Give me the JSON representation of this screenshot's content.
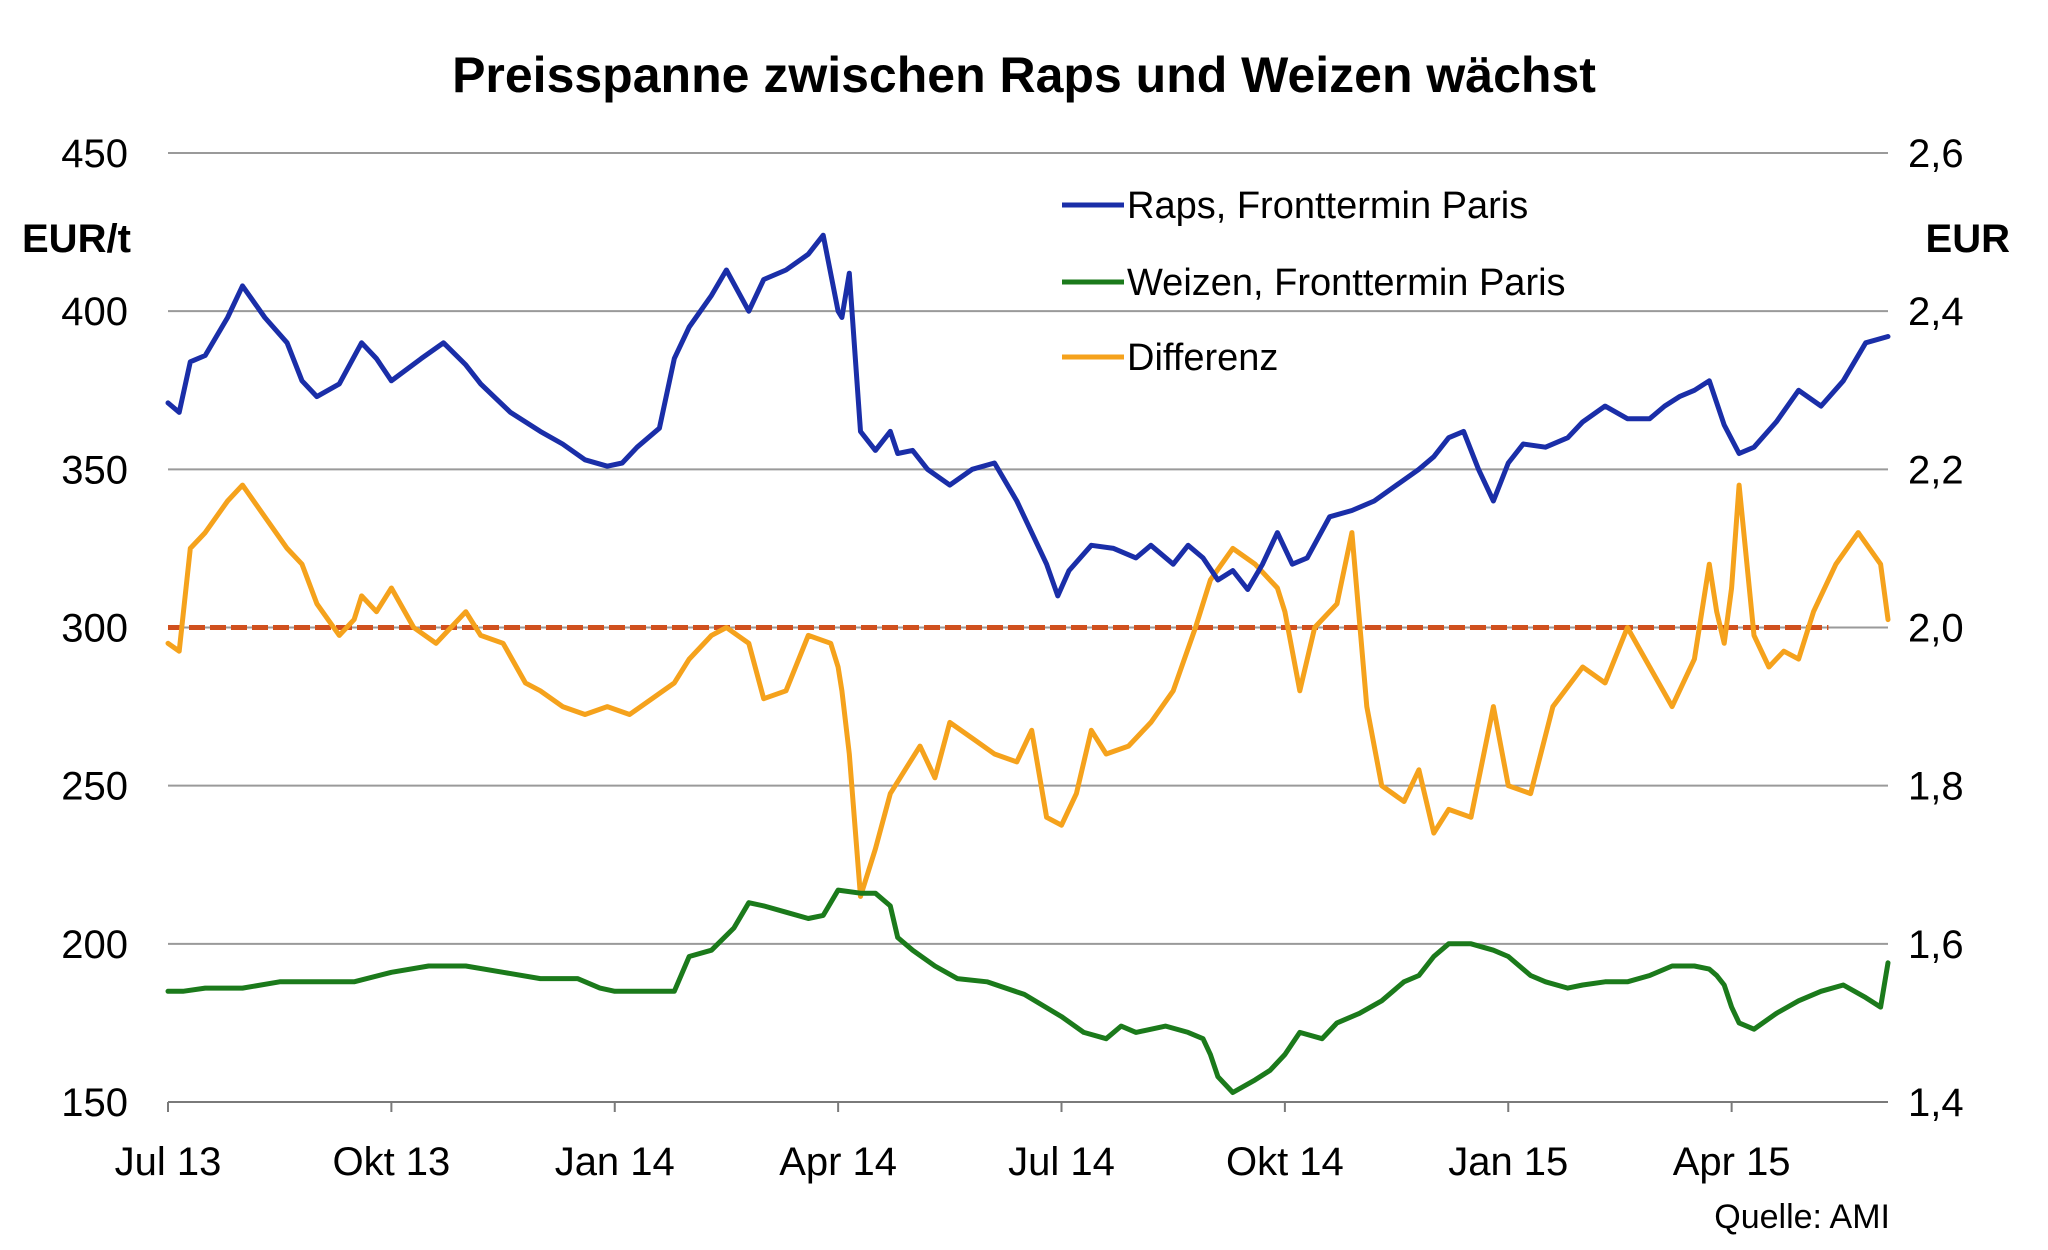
{
  "chart_data": {
    "type": "line",
    "title": "Preisspanne zwischen Raps und Weizen wächst",
    "ylabel": "EUR/t",
    "y2label": "EUR",
    "source": "Quelle: AMI",
    "ylim": [
      150,
      450
    ],
    "y2lim": [
      1.4,
      2.6
    ],
    "xlim": [
      0,
      23.1
    ],
    "yticks": [
      450,
      400,
      350,
      300,
      250,
      200,
      150
    ],
    "y2ticks": [
      "2,6",
      "2,4",
      "2,2",
      "2,0",
      "1,8",
      "1,6",
      "1,4"
    ],
    "x_tick_labels": [
      "Jul 13",
      "Okt 13",
      "Jan 14",
      "Apr 14",
      "Jul 14",
      "Okt 14",
      "Jan 15",
      "Apr 15"
    ],
    "x_tick_positions": [
      0,
      3,
      6,
      9,
      12,
      15,
      18,
      21
    ],
    "reference_line": {
      "axis": "right",
      "value": 2.0,
      "color": "#d0501e"
    },
    "series": [
      {
        "name": "Raps, Fronttermin Paris",
        "axis": "left",
        "color": "#1a2ea8",
        "x": [
          0,
          0.15,
          0.3,
          0.5,
          0.8,
          1.0,
          1.3,
          1.6,
          1.8,
          2.0,
          2.3,
          2.6,
          2.8,
          3.0,
          3.4,
          3.7,
          4.0,
          4.2,
          4.6,
          5.0,
          5.3,
          5.6,
          5.9,
          6.1,
          6.3,
          6.6,
          6.8,
          7.0,
          7.3,
          7.5,
          7.8,
          8.0,
          8.3,
          8.6,
          8.8,
          9.0,
          9.05,
          9.15,
          9.3,
          9.5,
          9.7,
          9.8,
          10.0,
          10.2,
          10.5,
          10.8,
          11.1,
          11.4,
          11.6,
          11.8,
          11.95,
          12.1,
          12.4,
          12.7,
          13.0,
          13.2,
          13.5,
          13.7,
          13.9,
          14.1,
          14.3,
          14.5,
          14.7,
          14.9,
          15.1,
          15.3,
          15.6,
          15.9,
          16.2,
          16.5,
          16.8,
          17.0,
          17.2,
          17.4,
          17.6,
          17.8,
          18.0,
          18.2,
          18.5,
          18.8,
          19.0,
          19.3,
          19.6,
          19.9,
          20.1,
          20.3,
          20.5,
          20.7,
          20.9,
          21.1,
          21.3,
          21.6,
          21.9,
          22.2,
          22.5,
          22.8,
          23.1
        ],
        "values": [
          371,
          368,
          384,
          386,
          398,
          408,
          398,
          390,
          378,
          373,
          377,
          390,
          385,
          378,
          385,
          390,
          383,
          377,
          368,
          362,
          358,
          353,
          351,
          352,
          357,
          363,
          385,
          395,
          405,
          413,
          400,
          410,
          413,
          418,
          424,
          400,
          398,
          412,
          362,
          356,
          362,
          355,
          356,
          350,
          345,
          350,
          352,
          340,
          330,
          320,
          310,
          318,
          326,
          325,
          322,
          326,
          320,
          326,
          322,
          315,
          318,
          312,
          320,
          330,
          320,
          322,
          335,
          337,
          340,
          345,
          350,
          354,
          360,
          362,
          350,
          340,
          352,
          358,
          357,
          360,
          365,
          370,
          366,
          366,
          370,
          373,
          375,
          378,
          364,
          355,
          357,
          365,
          375,
          370,
          378,
          390,
          392
        ]
      },
      {
        "name": "Weizen, Fronttermin Paris",
        "axis": "left",
        "color": "#1b7a1b",
        "x": [
          0,
          0.2,
          0.5,
          1.0,
          1.5,
          2.0,
          2.5,
          3.0,
          3.5,
          4.0,
          4.5,
          5.0,
          5.5,
          5.8,
          6.0,
          6.5,
          6.8,
          7.0,
          7.3,
          7.6,
          7.8,
          8.0,
          8.3,
          8.6,
          8.8,
          9.0,
          9.3,
          9.5,
          9.7,
          9.8,
          10.0,
          10.3,
          10.6,
          11.0,
          11.5,
          12.0,
          12.3,
          12.6,
          12.8,
          13.0,
          13.4,
          13.7,
          13.9,
          14.0,
          14.1,
          14.3,
          14.6,
          14.8,
          15.0,
          15.2,
          15.5,
          15.7,
          16.0,
          16.3,
          16.6,
          16.8,
          17.0,
          17.2,
          17.5,
          17.8,
          18.0,
          18.3,
          18.5,
          18.8,
          19.0,
          19.3,
          19.6,
          19.9,
          20.2,
          20.5,
          20.7,
          20.8,
          20.9,
          21.0,
          21.1,
          21.3,
          21.6,
          21.9,
          22.2,
          22.5,
          22.8,
          23.0,
          23.1
        ],
        "values": [
          185,
          185,
          186,
          186,
          188,
          188,
          188,
          191,
          193,
          193,
          191,
          189,
          189,
          186,
          185,
          185,
          185,
          196,
          198,
          205,
          213,
          212,
          210,
          208,
          209,
          217,
          216,
          216,
          212,
          202,
          198,
          193,
          189,
          188,
          184,
          177,
          172,
          170,
          174,
          172,
          174,
          172,
          170,
          165,
          158,
          153,
          157,
          160,
          165,
          172,
          170,
          175,
          178,
          182,
          188,
          190,
          196,
          200,
          200,
          198,
          196,
          190,
          188,
          186,
          187,
          188,
          188,
          190,
          193,
          193,
          192,
          190,
          187,
          180,
          175,
          173,
          178,
          182,
          185,
          187,
          183,
          180,
          194
        ]
      },
      {
        "name": "Differenz",
        "axis": "left",
        "color": "#f5a21c",
        "x": [
          0,
          0.15,
          0.3,
          0.5,
          0.8,
          1.0,
          1.3,
          1.6,
          1.8,
          2.0,
          2.3,
          2.5,
          2.6,
          2.8,
          3.0,
          3.3,
          3.6,
          4.0,
          4.2,
          4.5,
          4.8,
          5.0,
          5.3,
          5.6,
          5.9,
          6.2,
          6.5,
          6.8,
          7.0,
          7.3,
          7.5,
          7.8,
          8.0,
          8.3,
          8.6,
          8.9,
          9.0,
          9.05,
          9.15,
          9.3,
          9.5,
          9.7,
          9.9,
          10.1,
          10.3,
          10.5,
          10.8,
          11.1,
          11.4,
          11.6,
          11.8,
          12.0,
          12.2,
          12.4,
          12.6,
          12.9,
          13.2,
          13.5,
          13.8,
          14.0,
          14.3,
          14.6,
          14.9,
          15.0,
          15.2,
          15.4,
          15.7,
          15.9,
          16.1,
          16.3,
          16.6,
          16.8,
          17.0,
          17.2,
          17.5,
          17.8,
          18.0,
          18.3,
          18.6,
          19.0,
          19.3,
          19.6,
          19.9,
          20.2,
          20.5,
          20.7,
          20.8,
          20.9,
          21.0,
          21.1,
          21.3,
          21.5,
          21.7,
          21.9,
          22.1,
          22.4,
          22.7,
          23.0,
          23.1
        ],
        "values": [
          1.98,
          1.97,
          2.1,
          2.12,
          2.16,
          2.18,
          2.14,
          2.1,
          2.08,
          2.03,
          1.99,
          2.01,
          2.04,
          2.02,
          2.05,
          2.0,
          1.98,
          2.02,
          1.99,
          1.98,
          1.93,
          1.92,
          1.9,
          1.89,
          1.9,
          1.89,
          1.91,
          1.93,
          1.96,
          1.99,
          2.0,
          1.98,
          1.91,
          1.92,
          1.99,
          1.98,
          1.95,
          1.92,
          1.84,
          1.66,
          1.72,
          1.79,
          1.82,
          1.85,
          1.81,
          1.88,
          1.86,
          1.84,
          1.83,
          1.87,
          1.76,
          1.75,
          1.79,
          1.87,
          1.84,
          1.85,
          1.88,
          1.92,
          2.0,
          2.06,
          2.1,
          2.08,
          2.05,
          2.02,
          1.92,
          2.0,
          2.03,
          2.12,
          1.9,
          1.8,
          1.78,
          1.82,
          1.74,
          1.77,
          1.76,
          1.9,
          1.8,
          1.79,
          1.9,
          1.95,
          1.93,
          2.0,
          1.95,
          1.9,
          1.96,
          2.08,
          2.02,
          1.98,
          2.05,
          2.18,
          1.99,
          1.95,
          1.97,
          1.96,
          2.02,
          2.08,
          2.12,
          2.08,
          2.01
        ]
      }
    ]
  }
}
